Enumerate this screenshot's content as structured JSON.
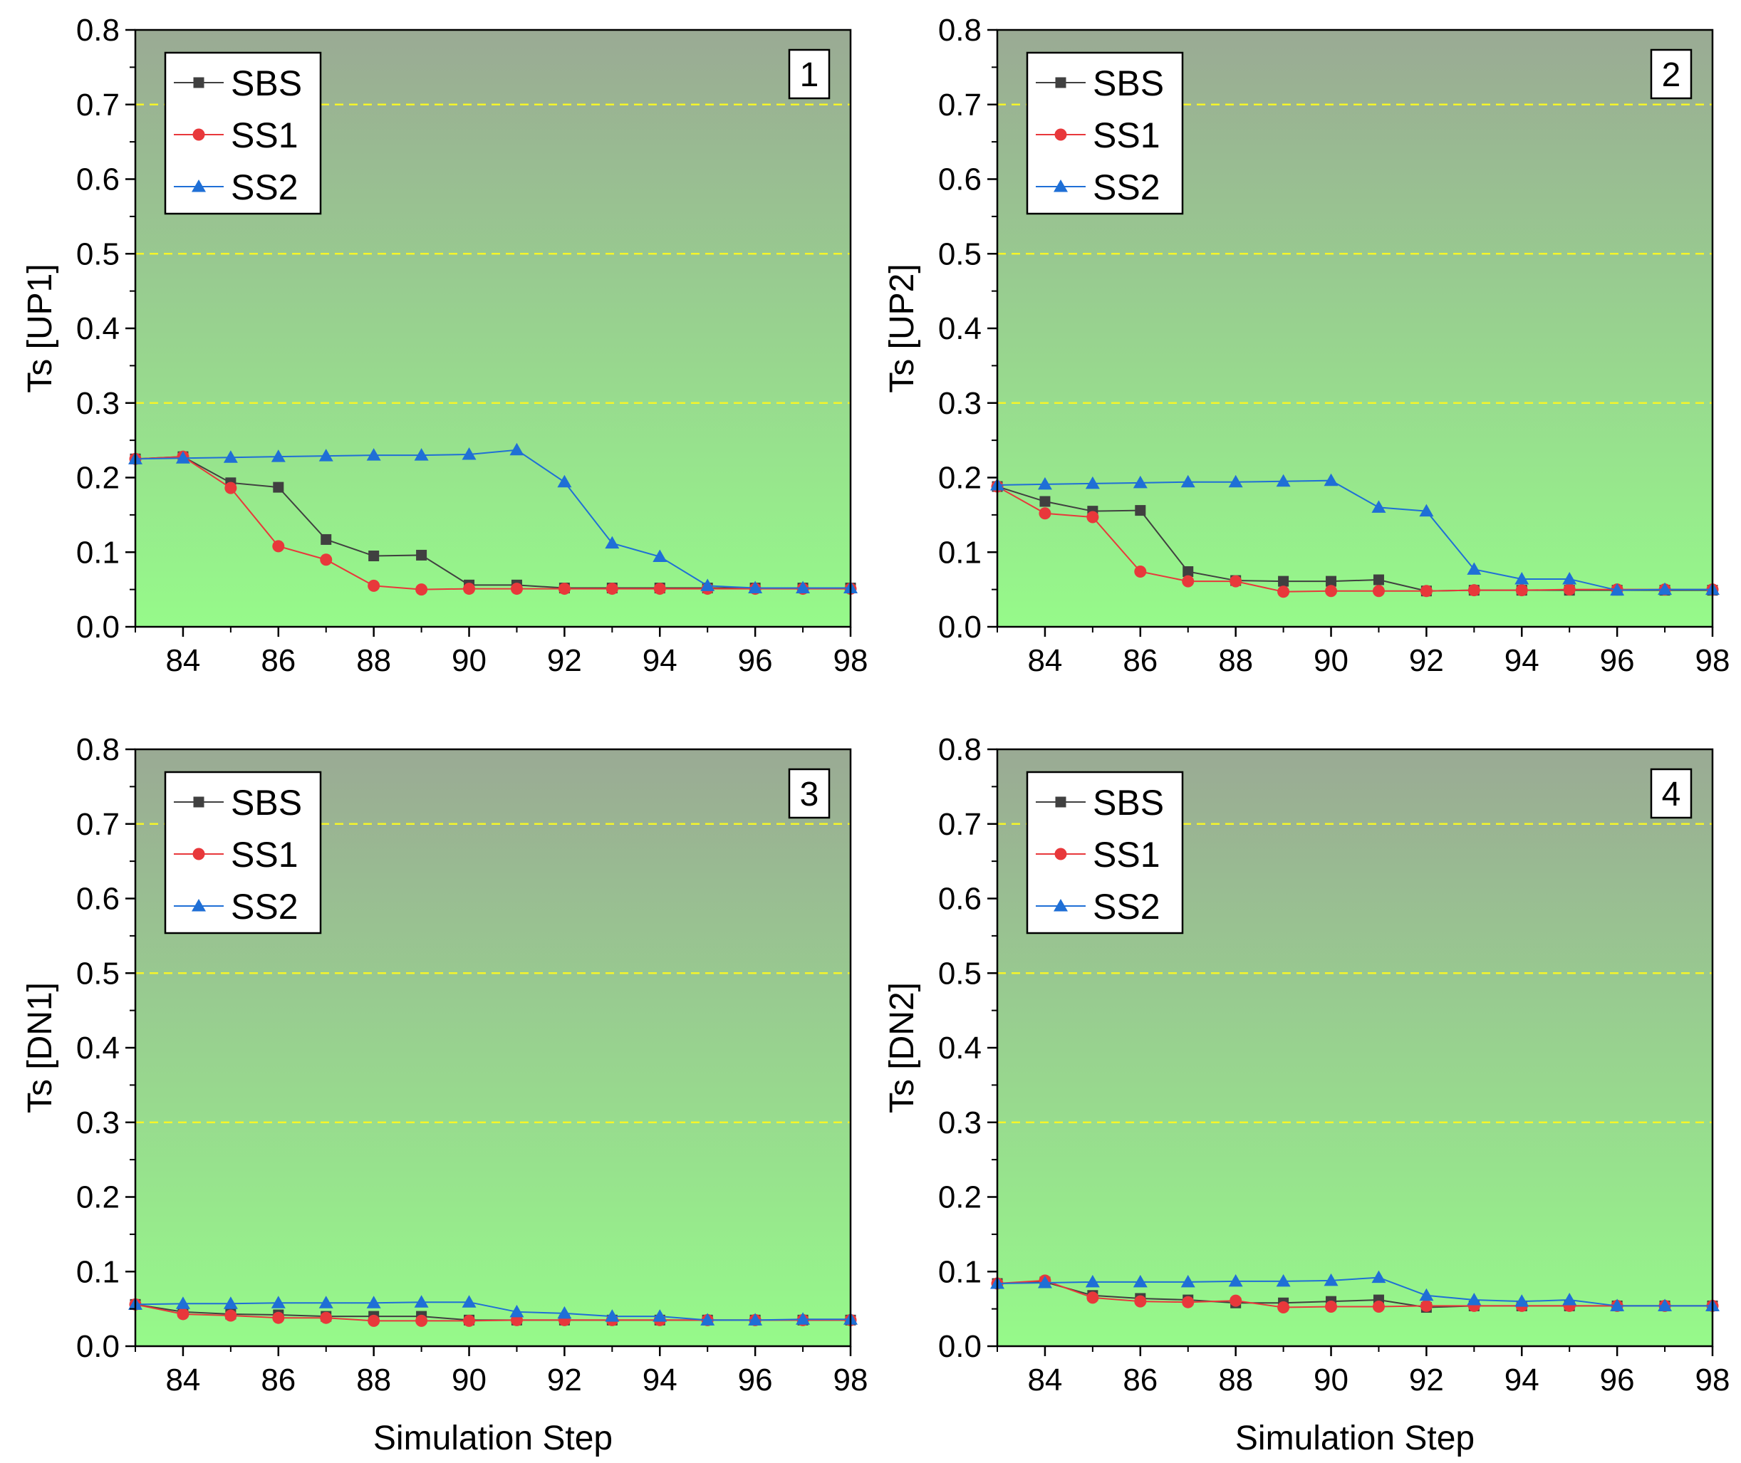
{
  "chart_data": [
    {
      "type": "line",
      "panel_label": "1",
      "xlabel": "",
      "ylabel": "Ts [UP1]",
      "xlim": [
        83,
        98
      ],
      "ylim": [
        0,
        0.8
      ],
      "xticks": [
        84,
        86,
        88,
        90,
        92,
        94,
        96,
        98
      ],
      "yticks": [
        0.0,
        0.1,
        0.2,
        0.3,
        0.4,
        0.5,
        0.6,
        0.7,
        0.8
      ],
      "reference_lines": [
        0.3,
        0.5,
        0.7
      ],
      "legend_position": "top-left",
      "x": [
        83,
        84,
        85,
        86,
        87,
        88,
        89,
        90,
        91,
        92,
        93,
        94,
        95,
        96,
        97,
        98
      ],
      "series": [
        {
          "name": "SBS",
          "color": "#404040",
          "marker": "square",
          "values": [
            0.225,
            0.228,
            0.193,
            0.187,
            0.117,
            0.095,
            0.096,
            0.056,
            0.056,
            0.052,
            0.052,
            0.052,
            0.052,
            0.052,
            0.052,
            0.052
          ]
        },
        {
          "name": "SS1",
          "color": "#e8383b",
          "marker": "circle",
          "values": [
            0.225,
            0.228,
            0.186,
            0.108,
            0.09,
            0.055,
            0.05,
            0.051,
            0.051,
            0.051,
            0.051,
            0.051,
            0.051,
            0.051,
            0.051,
            0.051
          ]
        },
        {
          "name": "SS2",
          "color": "#1f6fd6",
          "marker": "triangle",
          "values": [
            0.225,
            0.226,
            0.227,
            0.228,
            0.229,
            0.23,
            0.23,
            0.231,
            0.237,
            0.194,
            0.112,
            0.094,
            0.055,
            0.052,
            0.052,
            0.052
          ]
        }
      ]
    },
    {
      "type": "line",
      "panel_label": "2",
      "xlabel": "",
      "ylabel": "Ts [UP2]",
      "xlim": [
        83,
        98
      ],
      "ylim": [
        0,
        0.8
      ],
      "xticks": [
        84,
        86,
        88,
        90,
        92,
        94,
        96,
        98
      ],
      "yticks": [
        0.0,
        0.1,
        0.2,
        0.3,
        0.4,
        0.5,
        0.6,
        0.7,
        0.8
      ],
      "reference_lines": [
        0.3,
        0.5,
        0.7
      ],
      "legend_position": "top-left",
      "x": [
        83,
        84,
        85,
        86,
        87,
        88,
        89,
        90,
        91,
        92,
        93,
        94,
        95,
        96,
        97,
        98
      ],
      "series": [
        {
          "name": "SBS",
          "color": "#404040",
          "marker": "square",
          "values": [
            0.188,
            0.168,
            0.155,
            0.156,
            0.074,
            0.062,
            0.061,
            0.061,
            0.063,
            0.048,
            0.049,
            0.049,
            0.049,
            0.049,
            0.049,
            0.049
          ]
        },
        {
          "name": "SS1",
          "color": "#e8383b",
          "marker": "circle",
          "values": [
            0.188,
            0.152,
            0.147,
            0.074,
            0.061,
            0.061,
            0.047,
            0.048,
            0.048,
            0.048,
            0.049,
            0.049,
            0.05,
            0.05,
            0.05,
            0.05
          ]
        },
        {
          "name": "SS2",
          "color": "#1f6fd6",
          "marker": "triangle",
          "values": [
            0.19,
            0.191,
            0.192,
            0.193,
            0.194,
            0.194,
            0.195,
            0.196,
            0.16,
            0.155,
            0.077,
            0.064,
            0.064,
            0.049,
            0.05,
            0.05
          ]
        }
      ]
    },
    {
      "type": "line",
      "panel_label": "3",
      "xlabel": "Simulation Step",
      "ylabel": "Ts [DN1]",
      "xlim": [
        83,
        98
      ],
      "ylim": [
        0,
        0.8
      ],
      "xticks": [
        84,
        86,
        88,
        90,
        92,
        94,
        96,
        98
      ],
      "yticks": [
        0.0,
        0.1,
        0.2,
        0.3,
        0.4,
        0.5,
        0.6,
        0.7,
        0.8
      ],
      "reference_lines": [
        0.3,
        0.5,
        0.7
      ],
      "legend_position": "top-left",
      "x": [
        83,
        84,
        85,
        86,
        87,
        88,
        89,
        90,
        91,
        92,
        93,
        94,
        95,
        96,
        97,
        98
      ],
      "series": [
        {
          "name": "SBS",
          "color": "#404040",
          "marker": "square",
          "values": [
            0.056,
            0.046,
            0.043,
            0.042,
            0.04,
            0.04,
            0.04,
            0.035,
            0.035,
            0.035,
            0.035,
            0.035,
            0.035,
            0.035,
            0.035,
            0.035
          ]
        },
        {
          "name": "SS1",
          "color": "#e8383b",
          "marker": "circle",
          "values": [
            0.056,
            0.043,
            0.041,
            0.038,
            0.038,
            0.034,
            0.034,
            0.034,
            0.035,
            0.035,
            0.035,
            0.035,
            0.035,
            0.035,
            0.035,
            0.035
          ]
        },
        {
          "name": "SS2",
          "color": "#1f6fd6",
          "marker": "triangle",
          "values": [
            0.056,
            0.057,
            0.057,
            0.058,
            0.058,
            0.058,
            0.059,
            0.059,
            0.046,
            0.044,
            0.04,
            0.04,
            0.035,
            0.035,
            0.036,
            0.036
          ]
        }
      ]
    },
    {
      "type": "line",
      "panel_label": "4",
      "xlabel": "Simulation Step",
      "ylabel": "Ts [DN2]",
      "xlim": [
        83,
        98
      ],
      "ylim": [
        0,
        0.8
      ],
      "xticks": [
        84,
        86,
        88,
        90,
        92,
        94,
        96,
        98
      ],
      "yticks": [
        0.0,
        0.1,
        0.2,
        0.3,
        0.4,
        0.5,
        0.6,
        0.7,
        0.8
      ],
      "reference_lines": [
        0.3,
        0.5,
        0.7
      ],
      "legend_position": "top-left",
      "x": [
        83,
        84,
        85,
        86,
        87,
        88,
        89,
        90,
        91,
        92,
        93,
        94,
        95,
        96,
        97,
        98
      ],
      "series": [
        {
          "name": "SBS",
          "color": "#404040",
          "marker": "square",
          "values": [
            0.084,
            0.086,
            0.068,
            0.064,
            0.062,
            0.058,
            0.058,
            0.06,
            0.062,
            0.052,
            0.054,
            0.054,
            0.054,
            0.054,
            0.054,
            0.054
          ]
        },
        {
          "name": "SS1",
          "color": "#e8383b",
          "marker": "circle",
          "values": [
            0.084,
            0.088,
            0.065,
            0.06,
            0.059,
            0.061,
            0.052,
            0.053,
            0.053,
            0.054,
            0.054,
            0.054,
            0.054,
            0.054,
            0.054,
            0.054
          ]
        },
        {
          "name": "SS2",
          "color": "#1f6fd6",
          "marker": "triangle",
          "values": [
            0.084,
            0.085,
            0.086,
            0.086,
            0.086,
            0.087,
            0.087,
            0.088,
            0.092,
            0.068,
            0.062,
            0.06,
            0.062,
            0.054,
            0.054,
            0.054
          ]
        }
      ]
    }
  ],
  "colors": {
    "background_top": "#9aaa94",
    "background_bottom": "#96fa8a",
    "reference_line": "#f5f52a"
  }
}
